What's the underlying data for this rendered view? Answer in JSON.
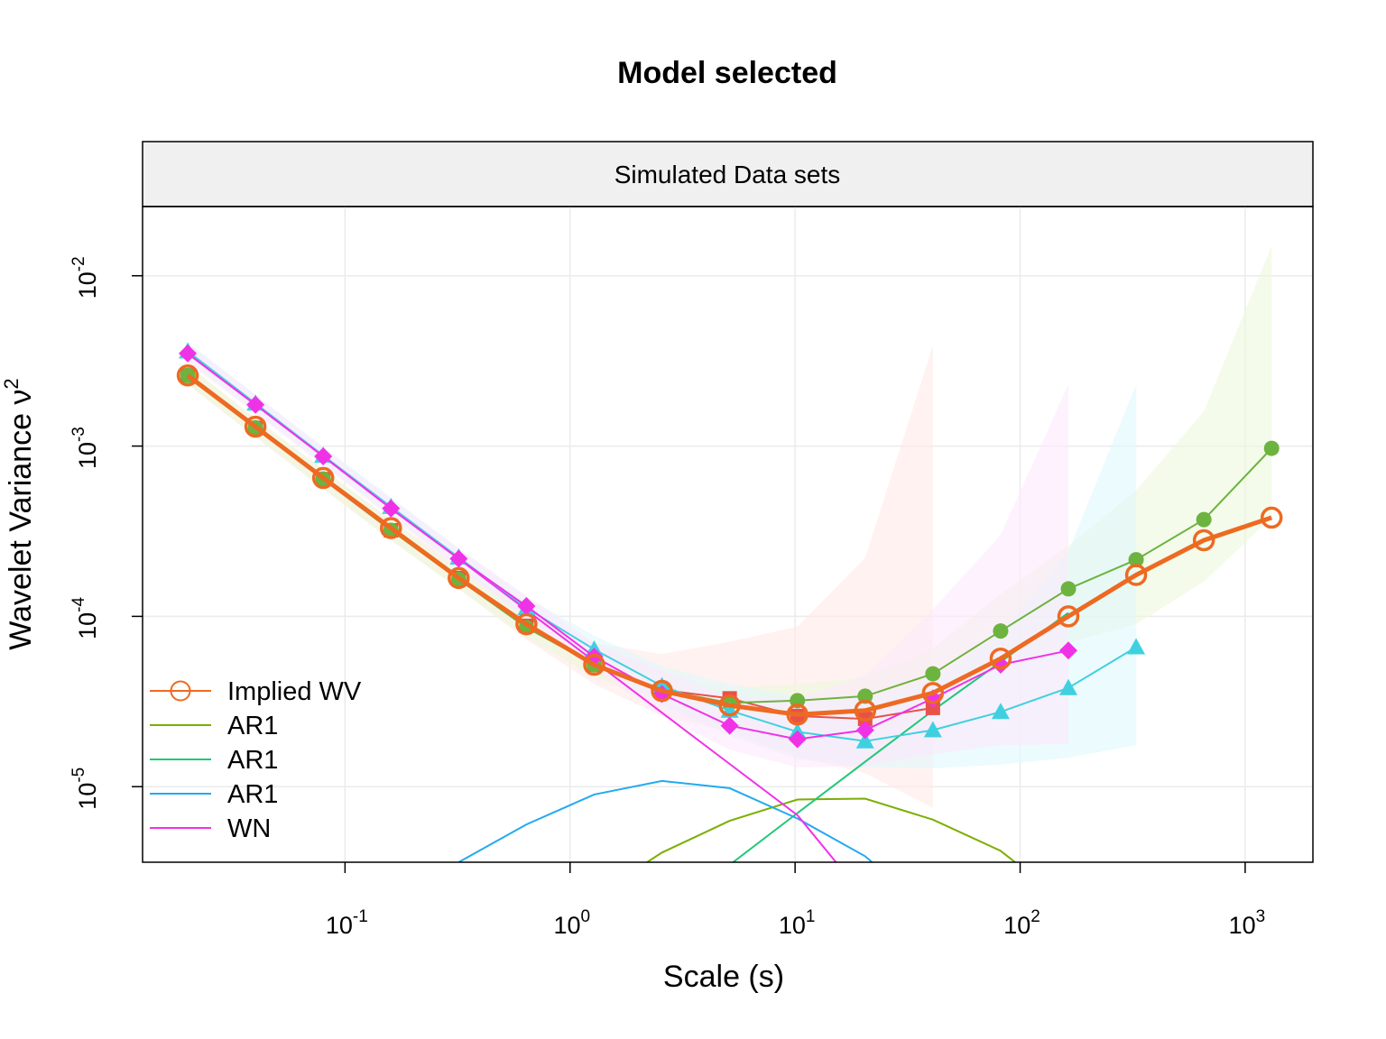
{
  "chart_data": {
    "type": "line",
    "title": "Model selected",
    "panel_label": "Simulated Data sets",
    "xlabel": "Scale (s)",
    "ylabel": "Wavelet Variance ν",
    "ylabel_sup": "2",
    "x_scale": "log",
    "y_scale": "log",
    "xlim": [
      0.0126,
      2000
    ],
    "ylim": [
      3.6e-06,
      0.0255
    ],
    "grid": true,
    "legend_position": "bottom-left",
    "x_ticks": [
      {
        "value": 0.1,
        "base": "10",
        "exp": "-1"
      },
      {
        "value": 1,
        "base": "10",
        "exp": "0"
      },
      {
        "value": 10,
        "base": "10",
        "exp": "1"
      },
      {
        "value": 100,
        "base": "10",
        "exp": "2"
      },
      {
        "value": 1000,
        "base": "10",
        "exp": "3"
      }
    ],
    "y_ticks": [
      {
        "value": 1e-05,
        "base": "10",
        "exp": "-5"
      },
      {
        "value": 0.0001,
        "base": "10",
        "exp": "-4"
      },
      {
        "value": 0.001,
        "base": "10",
        "exp": "-3"
      },
      {
        "value": 0.01,
        "base": "10",
        "exp": "-2"
      }
    ],
    "empirical": [
      {
        "color": "#e8514a",
        "marker": "square",
        "ci_color": "#ffe9e6",
        "x": [
          0.02,
          0.04,
          0.08,
          0.16,
          0.32,
          0.64,
          1.28,
          2.56,
          5.12,
          10.24,
          20.48,
          40.96
        ],
        "y": [
          0.0026,
          0.00128,
          0.00064,
          0.00032,
          0.000168,
          8.8e-05,
          5.2e-05,
          3.7e-05,
          3.3e-05,
          2.6e-05,
          2.5e-05,
          2.9e-05
        ],
        "ci_lo": [
          0.0023,
          0.00113,
          0.00056,
          0.00028,
          0.000145,
          7.3e-05,
          4e-05,
          2.6e-05,
          2.1e-05,
          1.5e-05,
          1.2e-05,
          7.5e-06
        ],
        "ci_hi": [
          0.003,
          0.00145,
          0.00073,
          0.00037,
          0.000195,
          0.000108,
          7e-05,
          6e-05,
          7.1e-05,
          8.7e-05,
          0.00022,
          0.0039
        ]
      },
      {
        "color": "#6db33f",
        "marker": "circle",
        "ci_color": "#edf9dc",
        "x": [
          0.02,
          0.04,
          0.08,
          0.16,
          0.32,
          0.64,
          1.28,
          2.56,
          5.12,
          10.24,
          20.48,
          40.96,
          81.92,
          163.84,
          327.68,
          655.36,
          1310.72
        ],
        "y": [
          0.0026,
          0.00128,
          0.00064,
          0.00032,
          0.000165,
          8.6e-05,
          5.2e-05,
          3.7e-05,
          3.1e-05,
          3.2e-05,
          3.4e-05,
          4.6e-05,
          8.2e-05,
          0.000145,
          0.000215,
          0.00037,
          0.00097
        ],
        "ci_lo": [
          0.0023,
          0.00113,
          0.00056,
          0.00028,
          0.000145,
          7.5e-05,
          4.4e-05,
          3.1e-05,
          2.5e-05,
          2.5e-05,
          2.6e-05,
          3.3e-05,
          5e-05,
          7e-05,
          9e-05,
          0.00016,
          0.00038
        ],
        "ci_hi": [
          0.003,
          0.00145,
          0.00073,
          0.00037,
          0.000188,
          9.8e-05,
          6.1e-05,
          4.4e-05,
          3.8e-05,
          4e-05,
          4.4e-05,
          6.5e-05,
          0.000135,
          0.00026,
          0.00055,
          0.0016,
          0.015
        ]
      },
      {
        "color": "#3fd0e0",
        "marker": "triangle",
        "ci_color": "#e0f9fc",
        "x": [
          0.02,
          0.04,
          0.08,
          0.16,
          0.32,
          0.64,
          1.28,
          2.56,
          5.12,
          10.24,
          20.48,
          40.96,
          81.92,
          163.84,
          327.68
        ],
        "y": [
          0.0036,
          0.00178,
          0.00088,
          0.00044,
          0.000222,
          0.000112,
          6.4e-05,
          3.9e-05,
          2.8e-05,
          2.1e-05,
          1.85e-05,
          2.15e-05,
          2.75e-05,
          3.8e-05,
          6.6e-05
        ],
        "ci_lo": [
          0.0032,
          0.00158,
          0.00078,
          0.00039,
          0.000195,
          9.6e-05,
          5.3e-05,
          3e-05,
          2e-05,
          1.45e-05,
          1.3e-05,
          1.28e-05,
          1.35e-05,
          1.48e-05,
          1.75e-05
        ],
        "ci_hi": [
          0.0041,
          0.002,
          0.00099,
          0.0005,
          0.000252,
          0.00013,
          7.7e-05,
          5.1e-05,
          4e-05,
          3.4e-05,
          3.3e-05,
          4.2e-05,
          8e-05,
          0.00024,
          0.0023
        ]
      },
      {
        "color": "#f032e6",
        "marker": "diamond",
        "ci_color": "#fbe9fb",
        "x": [
          0.02,
          0.04,
          0.08,
          0.16,
          0.32,
          0.64,
          1.28,
          2.56,
          5.12,
          10.24,
          20.48,
          40.96,
          81.92,
          163.84
        ],
        "y": [
          0.0035,
          0.00175,
          0.00087,
          0.00043,
          0.000218,
          0.000115,
          5.8e-05,
          3.5e-05,
          2.28e-05,
          1.9e-05,
          2.15e-05,
          3.3e-05,
          5.2e-05,
          6.3e-05
        ],
        "ci_lo": [
          0.0031,
          0.00155,
          0.00077,
          0.00038,
          0.00019,
          9.8e-05,
          4.8e-05,
          2.6e-05,
          1.65e-05,
          1.3e-05,
          1.32e-05,
          1.55e-05,
          1.75e-05,
          1.78e-05
        ],
        "ci_hi": [
          0.004,
          0.002,
          0.00098,
          0.00049,
          0.00025,
          0.000132,
          7e-05,
          4.8e-05,
          3.4e-05,
          3.3e-05,
          4.5e-05,
          0.00011,
          0.0003,
          0.0023
        ]
      }
    ],
    "implied": {
      "name": "Implied WV",
      "color": "#ed6a22",
      "x": [
        0.02,
        0.04,
        0.08,
        0.16,
        0.32,
        0.64,
        1.28,
        2.56,
        5.12,
        10.24,
        20.48,
        40.96,
        81.92,
        163.84,
        327.68,
        655.36,
        1310.72
      ],
      "y": [
        0.0026,
        0.0013,
        0.00065,
        0.00033,
        0.000168,
        9e-05,
        5.2e-05,
        3.65e-05,
        3e-05,
        2.65e-05,
        2.8e-05,
        3.55e-05,
        5.65e-05,
        0.0001,
        0.000175,
        0.00028,
        0.00038
      ]
    },
    "components": [
      {
        "name": "AR1",
        "color": "#7cae00",
        "x": [
          2.2,
          2.56,
          5.12,
          10.24,
          20.48,
          40.96,
          81.92,
          95
        ],
        "y": [
          3.6e-06,
          4.1e-06,
          6.3e-06,
          8.4e-06,
          8.5e-06,
          6.4e-06,
          4.2e-06,
          3.6e-06
        ]
      },
      {
        "name": "AR1",
        "color": "#20c876",
        "x": [
          5.3,
          10.24,
          20.48,
          40.96,
          81.92,
          163.84
        ],
        "y": [
          3.6e-06,
          7e-06,
          1.4e-05,
          2.8e-05,
          5.4e-05,
          0.000105
        ]
      },
      {
        "name": "AR1",
        "color": "#22aaf0",
        "x": [
          0.32,
          0.64,
          1.28,
          2.56,
          5.12,
          10.24,
          20.48,
          22
        ],
        "y": [
          3.6e-06,
          6e-06,
          9e-06,
          1.08e-05,
          9.8e-06,
          6.5e-06,
          3.9e-06,
          3.6e-06
        ]
      },
      {
        "name": "WN",
        "color": "#f032e6",
        "x": [
          0.02,
          0.04,
          0.08,
          0.16,
          0.32,
          0.64,
          1.28,
          2.56,
          5.12,
          10.24,
          15.2
        ],
        "y": [
          0.0035,
          0.00175,
          0.00087,
          0.00043,
          0.000218,
          0.000109,
          5.45e-05,
          2.72e-05,
          1.36e-05,
          6.8e-06,
          3.6e-06
        ]
      }
    ]
  }
}
